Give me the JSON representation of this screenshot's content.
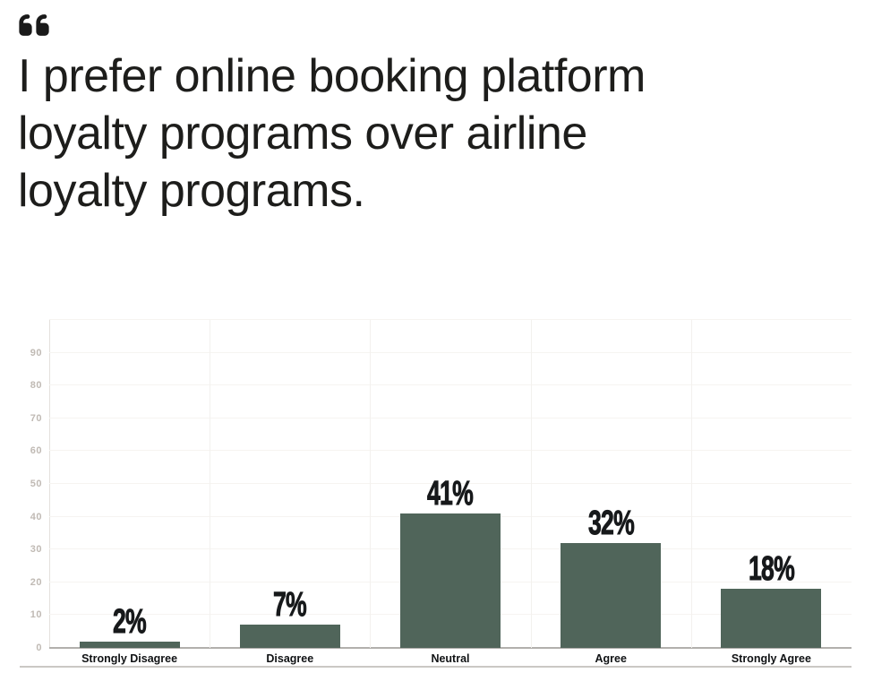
{
  "header": {
    "quote_icon": "quote-left-icon",
    "title_full": "I prefer online booking platform loyalty programs over airline loyalty programs.",
    "title_lines": [
      "I prefer online booking platform",
      "loyalty programs over airline",
      "loyalty programs."
    ],
    "title_color": "#1d1d1b",
    "icon_color": "#1a1a1a"
  },
  "chart_data": {
    "type": "bar",
    "title": "",
    "xlabel": "",
    "ylabel": "",
    "categories": [
      "Strongly Disagree",
      "Disagree",
      "Neutral",
      "Agree",
      "Strongly Agree"
    ],
    "values": [
      2,
      7,
      41,
      32,
      18
    ],
    "value_labels": [
      "2%",
      "7%",
      "41%",
      "32%",
      "18%"
    ],
    "ylim": [
      0,
      100
    ],
    "yticks": [
      0,
      10,
      20,
      30,
      40,
      50,
      60,
      70,
      80,
      90
    ],
    "grid": true,
    "legend": false,
    "bar_color": "#50655a",
    "value_label_color": "#17191b",
    "category_label_color": "#101214",
    "tick_label_color": "#c0bab4"
  }
}
